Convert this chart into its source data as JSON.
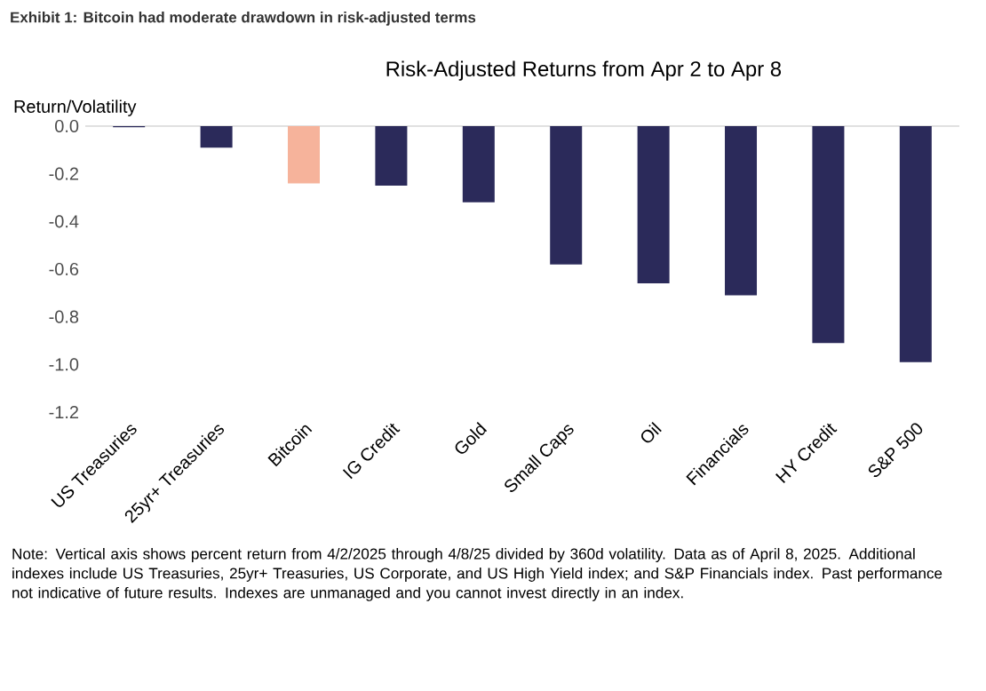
{
  "chart_data": {
    "type": "bar",
    "title": "**Exhibit 1: Bitcoin had moderate drawdown in risk-adjusted terms**",
    "subtitle": "Risk-Adjusted Returns from Apr 2 to Apr 8",
    "ylabel": "Return/Volatility",
    "categories": [
      "US Treasuries",
      "25yr+ Treasuries",
      "Bitcoin",
      "IG Credit",
      "Gold",
      "Small Caps",
      "Oil",
      "Financials",
      "HY Credit",
      "S&P 500"
    ],
    "values": [
      -0.005,
      -0.09,
      -0.24,
      -0.25,
      -0.32,
      -0.58,
      -0.66,
      -0.71,
      -0.91,
      -0.99
    ],
    "colors": [
      "#2b2a5a",
      "#2b2a5a",
      "#f6b39b",
      "#2b2a5a",
      "#2b2a5a",
      "#2b2a5a",
      "#2b2a5a",
      "#2b2a5a",
      "#2b2a5a",
      "#2b2a5a"
    ],
    "ylim": [
      -1.2,
      0.0
    ],
    "yticks": [
      {
        "value": 0.0,
        "label": "0.0"
      },
      -0.2,
      -0.4,
      -0.6,
      -0.8,
      {
        "value": -1.0,
        "label": "-1.0"
      },
      -1.2
    ],
    "annotations": [
      "Note: Vertical axis shows percent return from 4/2/2025 through 4/8/25 divided by 360d volatility. Data as of April 8, 2025. Additional indexes include US Treasuries, 25yr+ Treasuries, US Corporate, and US High Yield index; and S&P Financials index. Past performance not indicative of future results. Indexes are unmanaged and you cannot invest directly in an index."
    ]
  }
}
